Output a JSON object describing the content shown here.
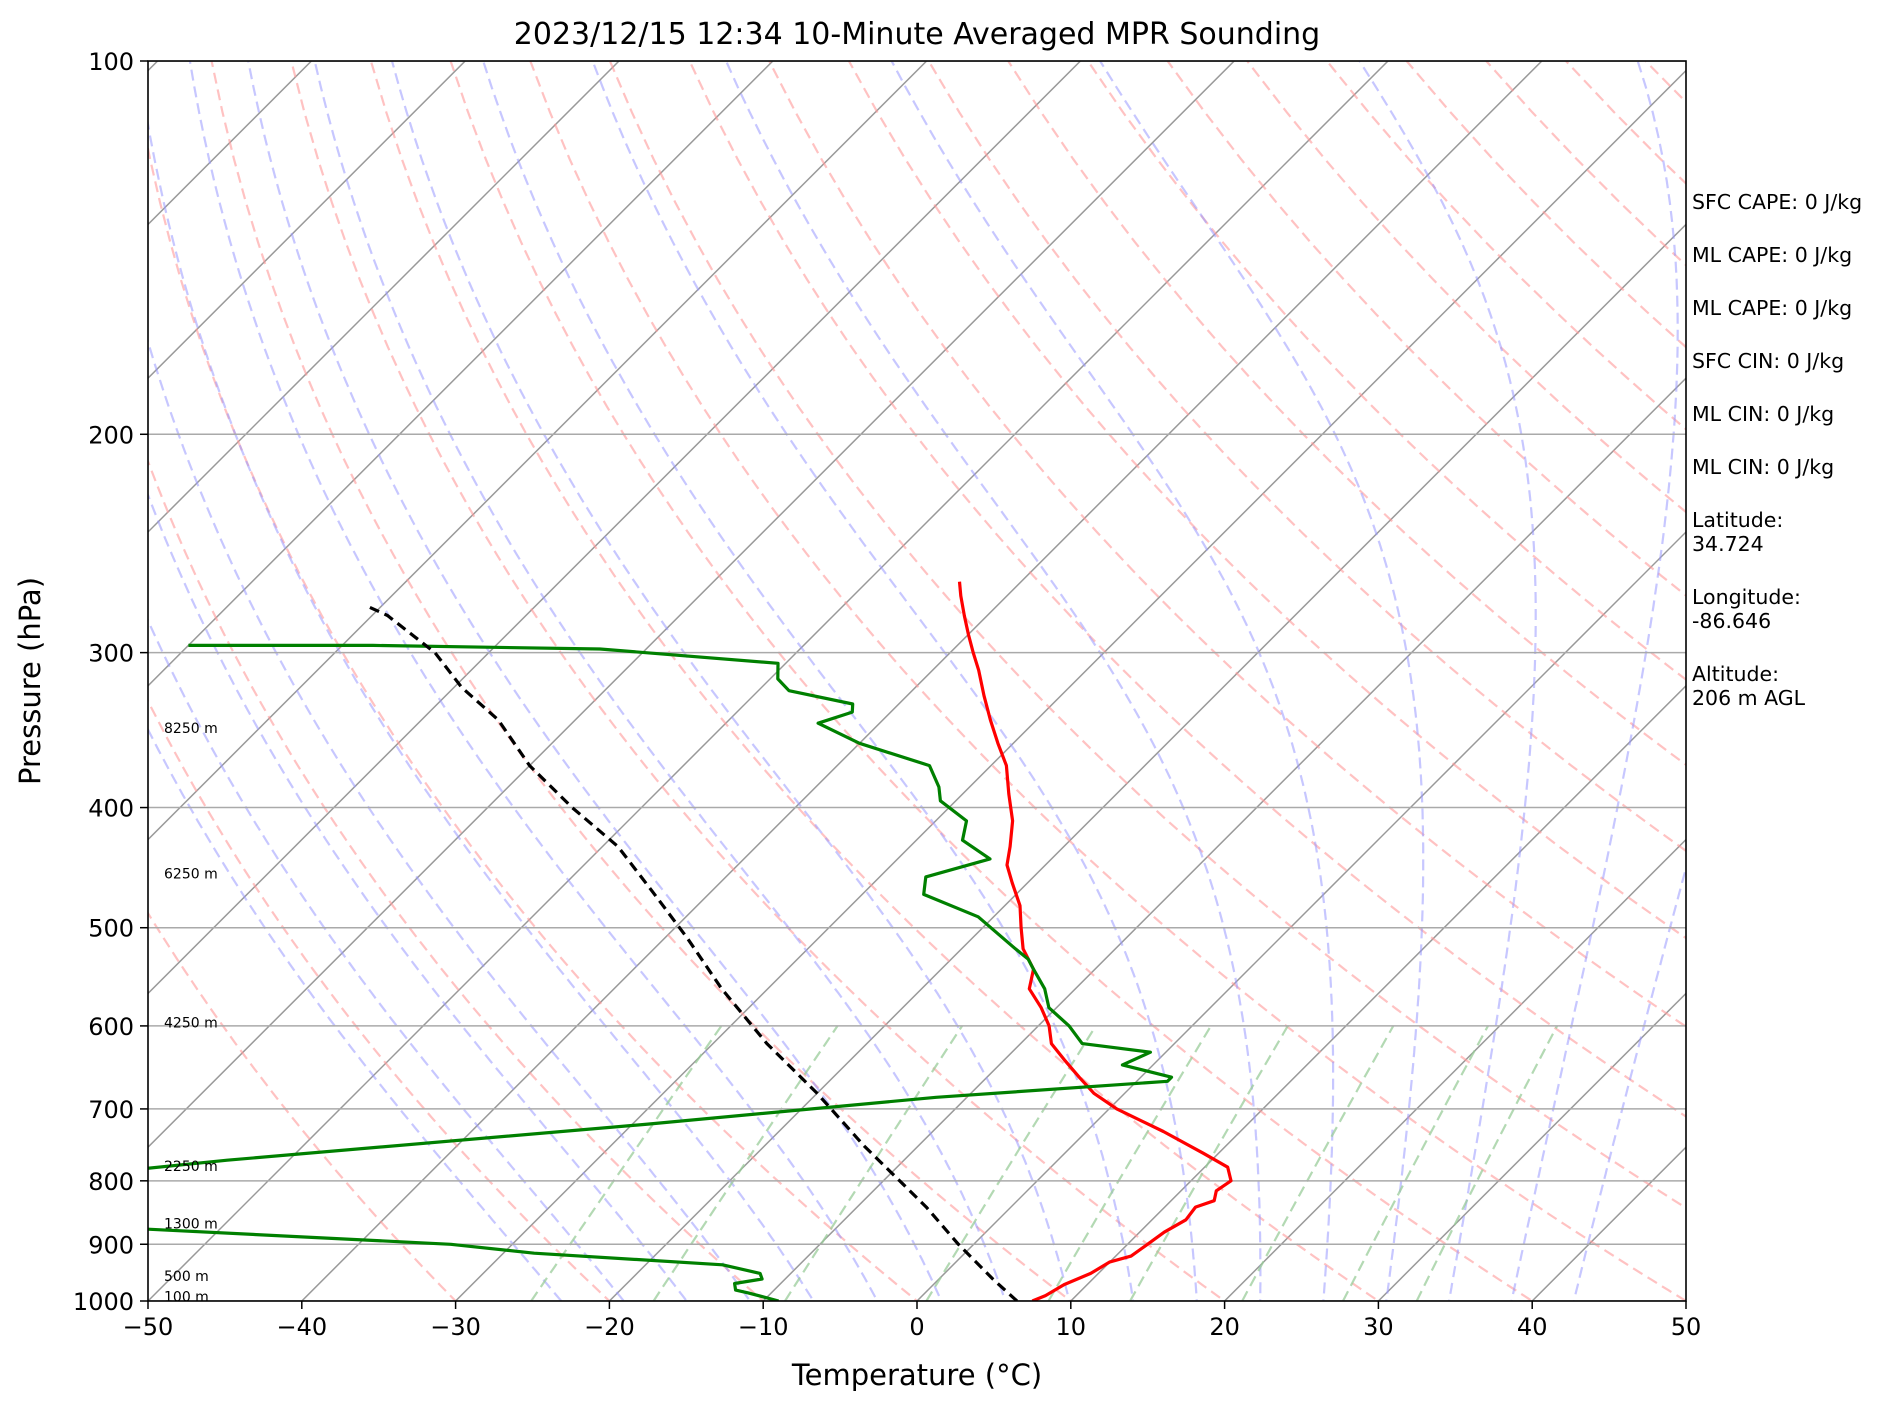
{
  "chart_data": {
    "type": "skew-t",
    "title": "2023/12/15 12:34 10-Minute Averaged MPR Sounding",
    "xlabel": "Temperature (°C)",
    "ylabel": "Pressure (hPa)",
    "xlim": [
      -50,
      50
    ],
    "ylim": [
      1000,
      100
    ],
    "x_ticks": [
      -50,
      -40,
      -30,
      -20,
      -10,
      0,
      10,
      20,
      30,
      40,
      50
    ],
    "x_tick_labels": [
      "−50",
      "−40",
      "−30",
      "−20",
      "−10",
      "0",
      "10",
      "20",
      "30",
      "40",
      "50"
    ],
    "y_ticks": [
      100,
      200,
      300,
      400,
      500,
      600,
      700,
      800,
      900,
      1000
    ],
    "y_tick_labels": [
      "100",
      "200",
      "300",
      "400",
      "500",
      "600",
      "700",
      "800",
      "900",
      "1000"
    ],
    "grid": true,
    "height_labels": [
      {
        "p": 345,
        "text": "8250 m"
      },
      {
        "p": 452,
        "text": "6250 m"
      },
      {
        "p": 596,
        "text": "4250 m"
      },
      {
        "p": 778,
        "text": "2250 m"
      },
      {
        "p": 866,
        "text": "1300 m"
      },
      {
        "p": 955,
        "text": "500 m"
      },
      {
        "p": 992,
        "text": "100 m"
      }
    ],
    "series": [
      {
        "color": "#ff0000",
        "points": [
          [
            7.5,
            1000
          ],
          [
            8.0,
            990
          ],
          [
            8.5,
            970
          ],
          [
            9.5,
            950
          ],
          [
            10.0,
            930
          ],
          [
            11.0,
            920
          ],
          [
            11.3,
            900
          ],
          [
            11.6,
            880
          ],
          [
            12.2,
            860
          ],
          [
            12.0,
            840
          ],
          [
            12.8,
            830
          ],
          [
            12.3,
            815
          ],
          [
            12.6,
            800
          ],
          [
            11.5,
            780
          ],
          [
            9.0,
            760
          ],
          [
            5.0,
            730
          ],
          [
            0.5,
            700
          ],
          [
            -2.0,
            680
          ],
          [
            -4.0,
            660
          ],
          [
            -6.0,
            640
          ],
          [
            -8.0,
            620
          ],
          [
            -9.3,
            600
          ],
          [
            -11.0,
            580
          ],
          [
            -13.0,
            560
          ],
          [
            -14.0,
            540
          ],
          [
            -16.0,
            520
          ],
          [
            -17.5,
            500
          ],
          [
            -19.0,
            480
          ],
          [
            -21.0,
            460
          ],
          [
            -22.5,
            445
          ],
          [
            -23.5,
            430
          ],
          [
            -25.0,
            410
          ],
          [
            -27.0,
            390
          ],
          [
            -29.0,
            370
          ],
          [
            -31.0,
            355
          ],
          [
            -33.0,
            340
          ],
          [
            -35.0,
            325
          ],
          [
            -37.0,
            310
          ],
          [
            -38.5,
            300
          ],
          [
            -40.0,
            290
          ],
          [
            -41.5,
            280
          ],
          [
            -43.0,
            270
          ],
          [
            -44.0,
            263
          ]
        ]
      },
      {
        "color": "#008000",
        "points": [
          [
            -9.0,
            1000
          ],
          [
            -11.5,
            985
          ],
          [
            -12.5,
            980
          ],
          [
            -13.0,
            968
          ],
          [
            -11.5,
            960
          ],
          [
            -12.0,
            950
          ],
          [
            -15.0,
            935
          ],
          [
            -28.0,
            915
          ],
          [
            -34.0,
            900
          ],
          [
            -59.0,
            870
          ],
          [
            -60.0,
            850
          ],
          [
            -57.0,
            838
          ],
          [
            -63.0,
            820
          ],
          [
            -61.0,
            808
          ],
          [
            -64.0,
            795
          ],
          [
            -54.0,
            770
          ],
          [
            -29.0,
            720
          ],
          [
            -12.0,
            685
          ],
          [
            2.0,
            665
          ],
          [
            2.0,
            660
          ],
          [
            -2.0,
            645
          ],
          [
            -1.0,
            630
          ],
          [
            -6.0,
            620
          ],
          [
            -8.0,
            600
          ],
          [
            -10.5,
            580
          ],
          [
            -12.0,
            560
          ],
          [
            -14.0,
            540
          ],
          [
            -15.0,
            530
          ],
          [
            -16.5,
            520
          ],
          [
            -21.0,
            490
          ],
          [
            -26.0,
            470
          ],
          [
            -27.0,
            455
          ],
          [
            -24.0,
            440
          ],
          [
            -27.0,
            425
          ],
          [
            -28.0,
            410
          ],
          [
            -31.0,
            395
          ],
          [
            -32.0,
            385
          ],
          [
            -34.0,
            370
          ],
          [
            -40.0,
            355
          ],
          [
            -44.0,
            342
          ],
          [
            -42.5,
            335
          ],
          [
            -43.0,
            330
          ],
          [
            -48.0,
            322
          ],
          [
            -49.5,
            315
          ],
          [
            -50.5,
            306
          ],
          [
            -63.0,
            298
          ],
          [
            -78.0,
            296
          ],
          [
            -90.0,
            296
          ]
        ]
      },
      {
        "color": "#000000",
        "dashed": true,
        "points": [
          [
            6.5,
            1000
          ],
          [
            3.5,
            960
          ],
          [
            -1.0,
            900
          ],
          [
            -5.5,
            840
          ],
          [
            -8.5,
            805
          ],
          [
            -13.5,
            750
          ],
          [
            -20.0,
            680
          ],
          [
            -26.5,
            620
          ],
          [
            -33.0,
            560
          ],
          [
            -38.5,
            510
          ],
          [
            -43.5,
            470
          ],
          [
            -49.0,
            430
          ],
          [
            -54.5,
            400
          ],
          [
            -60.0,
            370
          ],
          [
            -65.0,
            340
          ],
          [
            -69.5,
            320
          ],
          [
            -73.5,
            300
          ],
          [
            -79.0,
            280
          ],
          [
            -81.0,
            275
          ]
        ]
      }
    ],
    "background_lines": {
      "dry_adiabats_color": "#ff9999",
      "moist_adiabats_color": "#9999ff",
      "mixing_ratio_color": "#99cc99",
      "isotherms_color": "#999999"
    }
  },
  "side_info": {
    "sfc_cape": "SFC CAPE: 0 J/kg",
    "ml_cape_1": "ML CAPE: 0 J/kg",
    "ml_cape_2": "ML CAPE: 0 J/kg",
    "sfc_cin": "SFC CIN: 0 J/kg",
    "ml_cin_1": "ML CIN: 0 J/kg",
    "ml_cin_2": "ML CIN: 0 J/kg",
    "latitude": "Latitude:\n34.724",
    "longitude": "Longitude:\n-86.646",
    "altitude": "Altitude:\n206 m AGL"
  }
}
